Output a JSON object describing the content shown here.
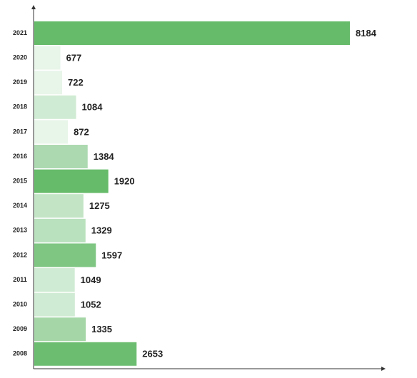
{
  "chart_data": {
    "type": "bar",
    "orientation": "horizontal",
    "categories": [
      "2021",
      "2020",
      "2019",
      "2018",
      "2017",
      "2016",
      "2015",
      "2014",
      "2013",
      "2012",
      "2011",
      "2010",
      "2009",
      "2008"
    ],
    "values": [
      8184,
      677,
      722,
      1084,
      872,
      1384,
      1920,
      1275,
      1329,
      1597,
      1049,
      1052,
      1335,
      2653
    ],
    "colors": [
      "#66bb6a",
      "#e8f5e9",
      "#e8f5e9",
      "#d0ebd3",
      "#e8f5e9",
      "#acd9b0",
      "#66bb6a",
      "#c3e5c6",
      "#b9e1bd",
      "#7fc683",
      "#d0ebd3",
      "#d0ebd3",
      "#a5d6a7",
      "#6cbd70"
    ]
  }
}
